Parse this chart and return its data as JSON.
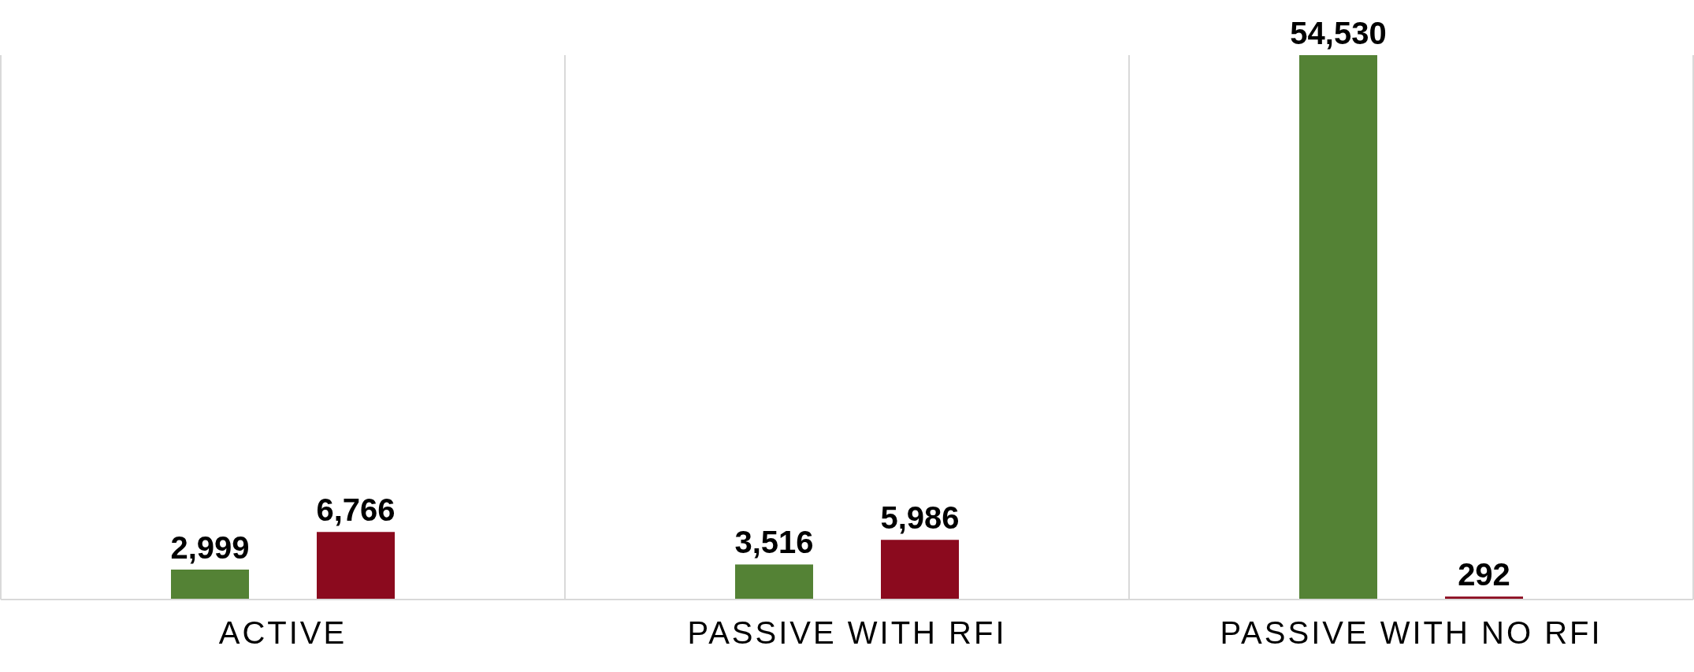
{
  "chart_data": {
    "type": "bar",
    "categories": [
      "ACTIVE",
      "PASSIVE WITH RFI",
      "PASSIVE WITH NO RFI"
    ],
    "series": [
      {
        "color": "#548235",
        "values": [
          2999,
          3516,
          54530
        ],
        "value_labels": [
          "2,999",
          "3,516",
          "54,530"
        ]
      },
      {
        "color": "#8b0a1e",
        "values": [
          6766,
          5986,
          292
        ],
        "value_labels": [
          "6,766",
          "5,986",
          "292"
        ]
      }
    ],
    "grid": "x",
    "legend": false
  }
}
